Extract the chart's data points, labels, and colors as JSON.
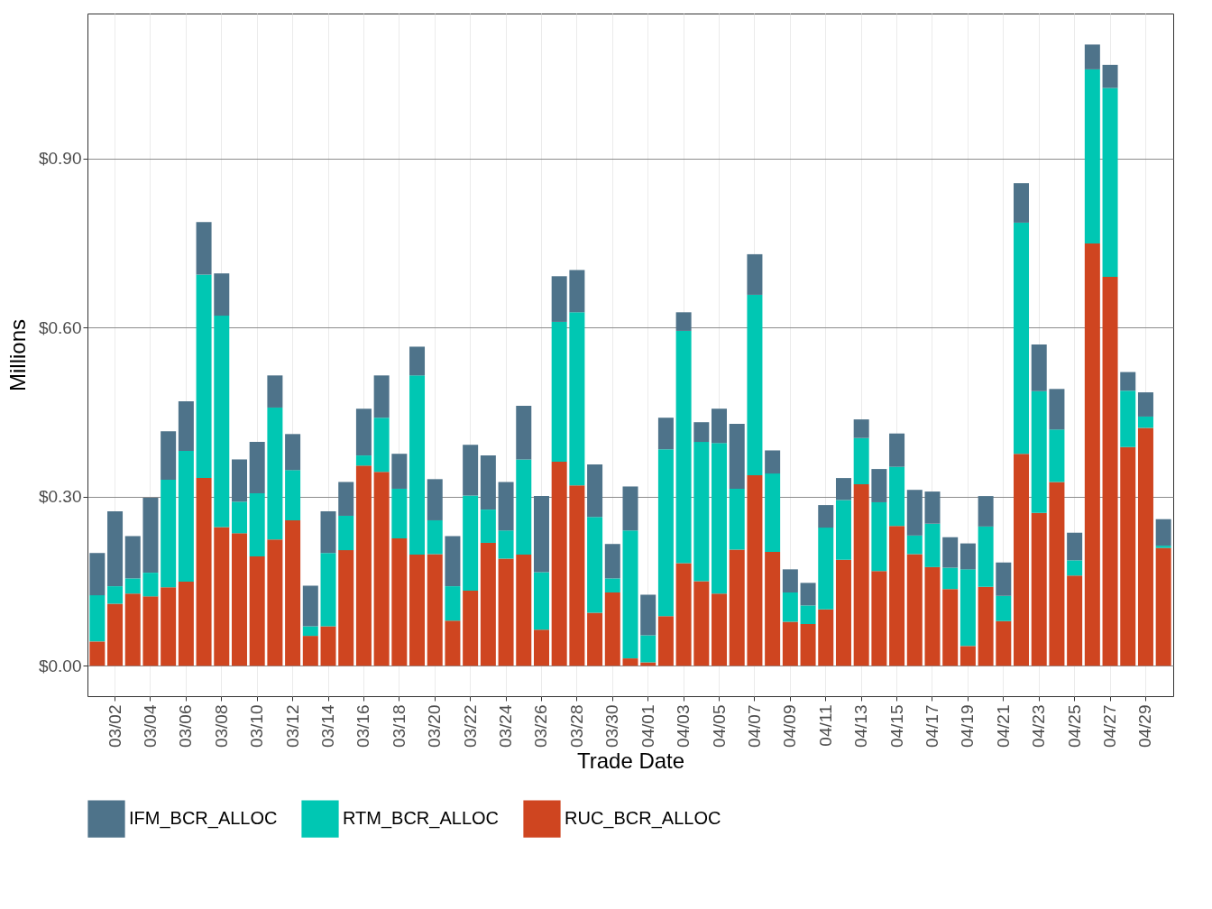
{
  "chart_data": {
    "type": "bar",
    "stacked": true,
    "xlabel": "Trade Date",
    "ylabel": "Millions",
    "categories": [
      null,
      "03/02",
      null,
      "03/04",
      null,
      "03/06",
      null,
      "03/08",
      null,
      "03/10",
      null,
      "03/12",
      null,
      "03/14",
      null,
      "03/16",
      null,
      "03/18",
      null,
      "03/20",
      null,
      "03/22",
      null,
      "03/24",
      null,
      "03/26",
      null,
      "03/28",
      null,
      "03/30",
      null,
      "04/01",
      null,
      "04/03",
      null,
      "04/05",
      null,
      "04/07",
      null,
      "04/09",
      null,
      "04/11",
      null,
      "04/13",
      null,
      "04/15",
      null,
      "04/17",
      null,
      "04/19",
      null,
      "04/21",
      null,
      "04/23",
      null,
      "04/25",
      null,
      "04/27",
      null,
      "04/29",
      null
    ],
    "series": [
      {
        "name": "RUC_BCR_ALLOC",
        "color": "#cf4520",
        "values": [
          0.043,
          0.11,
          0.128,
          0.123,
          0.139,
          0.149,
          0.333,
          0.246,
          0.235,
          0.194,
          0.224,
          0.258,
          0.053,
          0.07,
          0.205,
          0.355,
          0.344,
          0.226,
          0.197,
          0.198,
          0.08,
          0.133,
          0.218,
          0.19,
          0.197,
          0.064,
          0.362,
          0.32,
          0.094,
          0.13,
          0.013,
          0.006,
          0.088,
          0.182,
          0.15,
          0.128,
          0.206,
          0.338,
          0.202,
          0.078,
          0.074,
          0.1,
          0.188,
          0.322,
          0.168,
          0.248,
          0.198,
          0.175,
          0.136,
          0.035,
          0.14,
          0.079,
          0.376,
          0.271,
          0.326,
          0.16,
          0.749,
          0.69,
          0.388,
          0.422,
          0.209
        ]
      },
      {
        "name": "RTM_BCR_ALLOC",
        "color": "#00c7b3",
        "values": [
          0.082,
          0.031,
          0.027,
          0.042,
          0.191,
          0.232,
          0.361,
          0.375,
          0.056,
          0.112,
          0.234,
          0.089,
          0.017,
          0.13,
          0.061,
          0.018,
          0.096,
          0.088,
          0.318,
          0.06,
          0.061,
          0.169,
          0.059,
          0.05,
          0.169,
          0.102,
          0.248,
          0.307,
          0.17,
          0.025,
          0.227,
          0.048,
          0.296,
          0.412,
          0.247,
          0.267,
          0.108,
          0.32,
          0.139,
          0.052,
          0.033,
          0.145,
          0.106,
          0.082,
          0.122,
          0.105,
          0.033,
          0.077,
          0.038,
          0.136,
          0.107,
          0.045,
          0.41,
          0.216,
          0.093,
          0.027,
          0.309,
          0.335,
          0.1,
          0.02,
          0.004
        ]
      },
      {
        "name": "IFM_BCR_ALLOC",
        "color": "#4e738a",
        "values": [
          0.075,
          0.133,
          0.075,
          0.133,
          0.086,
          0.088,
          0.093,
          0.075,
          0.075,
          0.091,
          0.057,
          0.064,
          0.072,
          0.074,
          0.06,
          0.083,
          0.075,
          0.062,
          0.051,
          0.073,
          0.089,
          0.09,
          0.096,
          0.086,
          0.095,
          0.135,
          0.081,
          0.075,
          0.093,
          0.061,
          0.078,
          0.072,
          0.056,
          0.033,
          0.035,
          0.061,
          0.115,
          0.072,
          0.041,
          0.041,
          0.04,
          0.04,
          0.039,
          0.033,
          0.059,
          0.059,
          0.081,
          0.057,
          0.054,
          0.046,
          0.054,
          0.059,
          0.07,
          0.083,
          0.072,
          0.049,
          0.044,
          0.041,
          0.033,
          0.043,
          0.047
        ]
      }
    ],
    "ylim": [
      -0.054,
      1.157
    ],
    "yticks": [
      {
        "value": 0,
        "label": "$0.00"
      },
      {
        "value": 0.3,
        "label": "$0.30"
      },
      {
        "value": 0.6,
        "label": "$0.60"
      },
      {
        "value": 0.9,
        "label": "$0.90"
      }
    ],
    "grid": true,
    "legend": "bottom"
  }
}
